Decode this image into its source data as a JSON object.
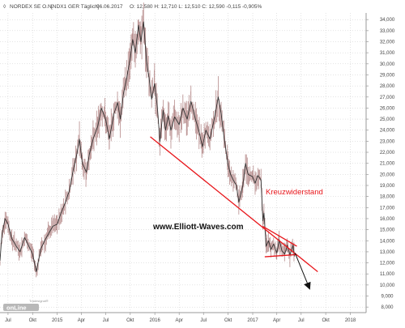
{
  "header": {
    "name": "NORDEX SE O.N.",
    "meta": "[NDX1 GER  Täglich]",
    "date": "06.06.2017",
    "ohlc": "O: 12,580  H: 12,710  L: 12,510  C: 12,590  -0,115  -0,905%"
  },
  "annotations": {
    "watermark": "www.Elliott-Waves.com",
    "cross_resistance_label": "Kreuzwiderstand"
  },
  "logo": {
    "small": "Tradesignal®",
    "main": "onLine"
  },
  "colors": {
    "price": "#333333",
    "trendline": "#e8161b",
    "annotation_text": "#e8161b",
    "arrow": "#111111",
    "axis_text": "#444444",
    "grid": "#c8c8c8"
  },
  "chart_data": {
    "type": "line",
    "title": "",
    "y_axis": {
      "side": "right",
      "ylim": [
        7.5,
        34.6
      ],
      "ticks": [
        "8,000",
        "9,000",
        "10,000",
        "11,000",
        "12,000",
        "13,000",
        "14,000",
        "15,000",
        "16,000",
        "17,000",
        "18,000",
        "19,000",
        "20,000",
        "21,000",
        "22,000",
        "23,000",
        "24,000",
        "25,000",
        "26,000",
        "27,000",
        "28,000",
        "29,000",
        "30,000",
        "31,000",
        "32,000",
        "33,000",
        "34,000"
      ]
    },
    "x_axis": {
      "start": "2014-06-01",
      "end": "2018-03-01",
      "ticks": [
        {
          "date": "2014-07-01",
          "label": "Jul"
        },
        {
          "date": "2014-10-01",
          "label": "Okt"
        },
        {
          "date": "2015-01-01",
          "label": "2015"
        },
        {
          "date": "2015-04-01",
          "label": "Apr"
        },
        {
          "date": "2015-07-01",
          "label": "Jul"
        },
        {
          "date": "2015-10-01",
          "label": "Okt"
        },
        {
          "date": "2016-01-01",
          "label": "2016"
        },
        {
          "date": "2016-04-01",
          "label": "Apr"
        },
        {
          "date": "2016-07-01",
          "label": "Jul"
        },
        {
          "date": "2016-10-01",
          "label": "Okt"
        },
        {
          "date": "2017-01-01",
          "label": "2017"
        },
        {
          "date": "2017-04-01",
          "label": "Apr"
        },
        {
          "date": "2017-07-01",
          "label": "Jul"
        },
        {
          "date": "2017-10-01",
          "label": "Okt"
        },
        {
          "date": "2018-01-01",
          "label": "2018"
        }
      ]
    },
    "series": [
      {
        "values": [
          {
            "x": "2014-06-01",
            "y": 12.2
          },
          {
            "x": "2014-06-08",
            "y": 14.5
          },
          {
            "x": "2014-06-20",
            "y": 16.0
          },
          {
            "x": "2014-07-01",
            "y": 15.5
          },
          {
            "x": "2014-07-15",
            "y": 14.2
          },
          {
            "x": "2014-08-01",
            "y": 13.5
          },
          {
            "x": "2014-08-15",
            "y": 13.0
          },
          {
            "x": "2014-09-01",
            "y": 14.3
          },
          {
            "x": "2014-09-15",
            "y": 13.6
          },
          {
            "x": "2014-10-01",
            "y": 12.8
          },
          {
            "x": "2014-10-15",
            "y": 11.2
          },
          {
            "x": "2014-11-01",
            "y": 13.3
          },
          {
            "x": "2014-11-15",
            "y": 14.0
          },
          {
            "x": "2014-12-01",
            "y": 14.7
          },
          {
            "x": "2014-12-15",
            "y": 15.3
          },
          {
            "x": "2015-01-01",
            "y": 15.5
          },
          {
            "x": "2015-01-15",
            "y": 16.5
          },
          {
            "x": "2015-02-01",
            "y": 17.5
          },
          {
            "x": "2015-02-15",
            "y": 18.5
          },
          {
            "x": "2015-03-01",
            "y": 20.3
          },
          {
            "x": "2015-03-15",
            "y": 21.8
          },
          {
            "x": "2015-03-25",
            "y": 23.2
          },
          {
            "x": "2015-04-05",
            "y": 21.0
          },
          {
            "x": "2015-04-20",
            "y": 20.2
          },
          {
            "x": "2015-05-01",
            "y": 21.8
          },
          {
            "x": "2015-05-15",
            "y": 23.2
          },
          {
            "x": "2015-06-01",
            "y": 24.3
          },
          {
            "x": "2015-06-15",
            "y": 26.0
          },
          {
            "x": "2015-07-01",
            "y": 25.0
          },
          {
            "x": "2015-07-15",
            "y": 23.2
          },
          {
            "x": "2015-08-01",
            "y": 25.5
          },
          {
            "x": "2015-08-15",
            "y": 26.5
          },
          {
            "x": "2015-08-25",
            "y": 25.0
          },
          {
            "x": "2015-09-05",
            "y": 27.2
          },
          {
            "x": "2015-09-20",
            "y": 29.0
          },
          {
            "x": "2015-10-01",
            "y": 30.5
          },
          {
            "x": "2015-10-10",
            "y": 32.2
          },
          {
            "x": "2015-10-20",
            "y": 31.0
          },
          {
            "x": "2015-11-01",
            "y": 33.5
          },
          {
            "x": "2015-11-10",
            "y": 32.0
          },
          {
            "x": "2015-11-20",
            "y": 33.8
          },
          {
            "x": "2015-12-01",
            "y": 30.2
          },
          {
            "x": "2015-12-10",
            "y": 28.8
          },
          {
            "x": "2015-12-20",
            "y": 26.8
          },
          {
            "x": "2015-12-31",
            "y": 28.2
          },
          {
            "x": "2016-01-10",
            "y": 26.2
          },
          {
            "x": "2016-01-20",
            "y": 23.0
          },
          {
            "x": "2016-02-01",
            "y": 25.8
          },
          {
            "x": "2016-02-10",
            "y": 24.0
          },
          {
            "x": "2016-02-20",
            "y": 25.3
          },
          {
            "x": "2016-03-01",
            "y": 24.0
          },
          {
            "x": "2016-03-15",
            "y": 25.2
          },
          {
            "x": "2016-04-01",
            "y": 24.5
          },
          {
            "x": "2016-04-15",
            "y": 26.0
          },
          {
            "x": "2016-05-01",
            "y": 25.0
          },
          {
            "x": "2016-05-15",
            "y": 26.6
          },
          {
            "x": "2016-06-01",
            "y": 25.0
          },
          {
            "x": "2016-06-15",
            "y": 23.8
          },
          {
            "x": "2016-06-27",
            "y": 22.5
          },
          {
            "x": "2016-07-10",
            "y": 24.0
          },
          {
            "x": "2016-07-25",
            "y": 23.2
          },
          {
            "x": "2016-08-10",
            "y": 25.0
          },
          {
            "x": "2016-08-25",
            "y": 27.0
          },
          {
            "x": "2016-09-05",
            "y": 25.5
          },
          {
            "x": "2016-09-15",
            "y": 23.5
          },
          {
            "x": "2016-09-30",
            "y": 21.0
          },
          {
            "x": "2016-10-10",
            "y": 20.0
          },
          {
            "x": "2016-10-20",
            "y": 19.5
          },
          {
            "x": "2016-11-01",
            "y": 19.0
          },
          {
            "x": "2016-11-10",
            "y": 17.5
          },
          {
            "x": "2016-11-25",
            "y": 19.0
          },
          {
            "x": "2016-12-05",
            "y": 21.0
          },
          {
            "x": "2016-12-15",
            "y": 20.0
          },
          {
            "x": "2016-12-31",
            "y": 19.8
          },
          {
            "x": "2017-01-10",
            "y": 19.2
          },
          {
            "x": "2017-01-20",
            "y": 19.9
          },
          {
            "x": "2017-02-01",
            "y": 19.5
          },
          {
            "x": "2017-02-08",
            "y": 15.8
          },
          {
            "x": "2017-02-12",
            "y": 16.5
          },
          {
            "x": "2017-02-20",
            "y": 13.5
          },
          {
            "x": "2017-03-01",
            "y": 14.0
          },
          {
            "x": "2017-03-10",
            "y": 13.2
          },
          {
            "x": "2017-03-20",
            "y": 13.7
          },
          {
            "x": "2017-04-01",
            "y": 12.9
          },
          {
            "x": "2017-04-10",
            "y": 14.1
          },
          {
            "x": "2017-04-20",
            "y": 13.1
          },
          {
            "x": "2017-05-01",
            "y": 12.8
          },
          {
            "x": "2017-05-10",
            "y": 13.6
          },
          {
            "x": "2017-05-20",
            "y": 12.7
          },
          {
            "x": "2017-06-01",
            "y": 13.6
          },
          {
            "x": "2017-06-06",
            "y": 12.59
          }
        ]
      }
    ],
    "annotations": [
      {
        "type": "line",
        "name": "falling-trendline",
        "from": {
          "x": "2015-12-15",
          "y": 23.4
        },
        "to": {
          "x": "2017-09-01",
          "y": 11.2
        }
      },
      {
        "type": "line",
        "name": "triangle-upper-line",
        "from": {
          "x": "2017-02-08",
          "y": 15.3
        },
        "to": {
          "x": "2017-06-15",
          "y": 13.5
        }
      },
      {
        "type": "line",
        "name": "triangle-lower-line",
        "from": {
          "x": "2017-02-15",
          "y": 12.55
        },
        "to": {
          "x": "2017-06-15",
          "y": 12.75
        }
      },
      {
        "type": "arrow",
        "name": "forecast-arrow",
        "from": {
          "x": "2017-06-08",
          "y": 12.9
        },
        "to": {
          "x": "2017-08-01",
          "y": 9.7
        }
      }
    ]
  }
}
